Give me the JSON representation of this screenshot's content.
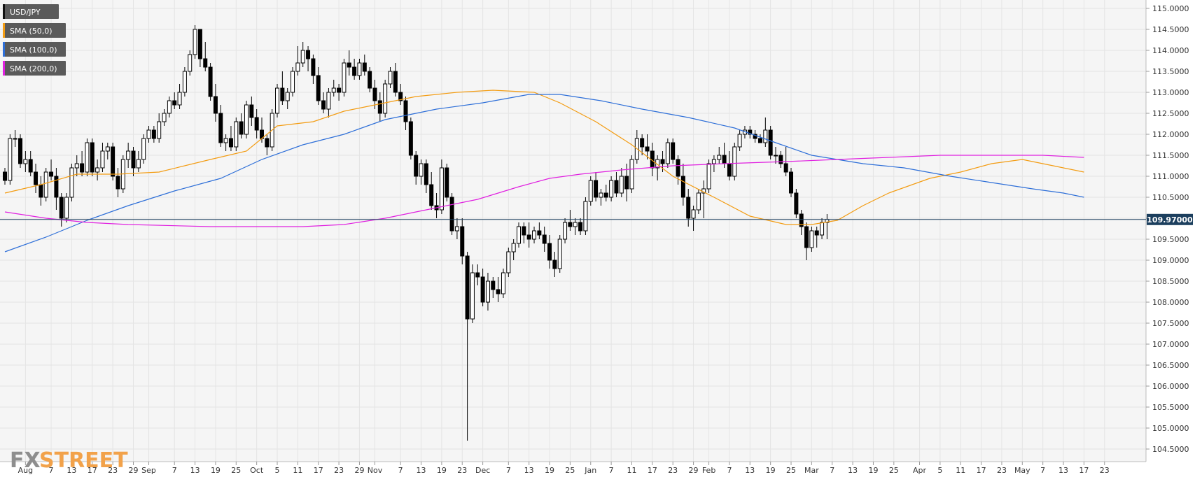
{
  "chart_data": {
    "type": "candlestick",
    "symbol": "USD/JPY",
    "indicators": [
      {
        "name": "SMA (50,0)",
        "color": "#f39c12"
      },
      {
        "name": "SMA (100,0)",
        "color": "#2e6fd8"
      },
      {
        "name": "SMA (200,0)",
        "color": "#e020e0"
      }
    ],
    "last_price_label": "109.97000",
    "last_price": 109.97,
    "ylim": [
      104.2,
      115.2
    ],
    "grid": true,
    "y_ticks": [
      "104.5000",
      "105.0000",
      "105.5000",
      "106.0000",
      "106.5000",
      "107.0000",
      "107.5000",
      "108.0000",
      "108.5000",
      "109.0000",
      "109.5000",
      "110.0000",
      "110.5000",
      "111.0000",
      "111.5000",
      "112.0000",
      "112.5000",
      "113.0000",
      "113.5000",
      "114.0000",
      "114.5000",
      "115.0000"
    ],
    "x_ticks": [
      {
        "label": "Aug",
        "i": 4
      },
      {
        "label": "7",
        "i": 9
      },
      {
        "label": "13",
        "i": 13
      },
      {
        "label": "17",
        "i": 17
      },
      {
        "label": "23",
        "i": 21
      },
      {
        "label": "29",
        "i": 25
      },
      {
        "label": "Sep",
        "i": 28
      },
      {
        "label": "7",
        "i": 33
      },
      {
        "label": "13",
        "i": 37
      },
      {
        "label": "19",
        "i": 41
      },
      {
        "label": "25",
        "i": 45
      },
      {
        "label": "Oct",
        "i": 49
      },
      {
        "label": "5",
        "i": 53
      },
      {
        "label": "11",
        "i": 57
      },
      {
        "label": "17",
        "i": 61
      },
      {
        "label": "23",
        "i": 65
      },
      {
        "label": "29",
        "i": 69
      },
      {
        "label": "Nov",
        "i": 72
      },
      {
        "label": "7",
        "i": 77
      },
      {
        "label": "13",
        "i": 81
      },
      {
        "label": "19",
        "i": 85
      },
      {
        "label": "23",
        "i": 89
      },
      {
        "label": "Dec",
        "i": 93
      },
      {
        "label": "7",
        "i": 98
      },
      {
        "label": "13",
        "i": 102
      },
      {
        "label": "19",
        "i": 106
      },
      {
        "label": "25",
        "i": 110
      },
      {
        "label": "Jan",
        "i": 114
      },
      {
        "label": "7",
        "i": 118
      },
      {
        "label": "11",
        "i": 122
      },
      {
        "label": "17",
        "i": 126
      },
      {
        "label": "23",
        "i": 130
      },
      {
        "label": "29",
        "i": 134
      },
      {
        "label": "Feb",
        "i": 137
      },
      {
        "label": "7",
        "i": 141
      },
      {
        "label": "13",
        "i": 145
      },
      {
        "label": "19",
        "i": 149
      },
      {
        "label": "25",
        "i": 153
      },
      {
        "label": "Mar",
        "i": 157
      },
      {
        "label": "7",
        "i": 161
      },
      {
        "label": "13",
        "i": 165
      },
      {
        "label": "19",
        "i": 169
      },
      {
        "label": "25",
        "i": 173
      },
      {
        "label": "Apr",
        "i": 178
      },
      {
        "label": "5",
        "i": 182
      },
      {
        "label": "11",
        "i": 186
      },
      {
        "label": "17",
        "i": 190
      },
      {
        "label": "23",
        "i": 194
      },
      {
        "label": "May",
        "i": 198
      },
      {
        "label": "7",
        "i": 202
      },
      {
        "label": "13",
        "i": 206
      },
      {
        "label": "17",
        "i": 210
      },
      {
        "label": "23",
        "i": 214
      }
    ],
    "sma50": [
      [
        0,
        110.6
      ],
      [
        7,
        110.8
      ],
      [
        14,
        111.05
      ],
      [
        22,
        111.05
      ],
      [
        30,
        111.1
      ],
      [
        40,
        111.4
      ],
      [
        47,
        111.6
      ],
      [
        53,
        112.2
      ],
      [
        60,
        112.3
      ],
      [
        66,
        112.55
      ],
      [
        72,
        112.7
      ],
      [
        80,
        112.9
      ],
      [
        88,
        113.0
      ],
      [
        95,
        113.05
      ],
      [
        103,
        113.0
      ],
      [
        108,
        112.75
      ],
      [
        115,
        112.3
      ],
      [
        122,
        111.75
      ],
      [
        130,
        111.0
      ],
      [
        138,
        110.5
      ],
      [
        145,
        110.05
      ],
      [
        152,
        109.85
      ],
      [
        157,
        109.85
      ],
      [
        162,
        109.95
      ],
      [
        167,
        110.3
      ],
      [
        172,
        110.6
      ],
      [
        180,
        110.95
      ],
      [
        186,
        111.1
      ],
      [
        192,
        111.3
      ],
      [
        198,
        111.4
      ],
      [
        204,
        111.25
      ],
      [
        210,
        111.1
      ]
    ],
    "sma100": [
      [
        0,
        109.2
      ],
      [
        8,
        109.55
      ],
      [
        16,
        109.95
      ],
      [
        24,
        110.3
      ],
      [
        33,
        110.65
      ],
      [
        42,
        110.95
      ],
      [
        50,
        111.4
      ],
      [
        58,
        111.75
      ],
      [
        66,
        112.0
      ],
      [
        74,
        112.35
      ],
      [
        84,
        112.6
      ],
      [
        93,
        112.75
      ],
      [
        102,
        112.95
      ],
      [
        108,
        112.95
      ],
      [
        116,
        112.8
      ],
      [
        124,
        112.6
      ],
      [
        133,
        112.4
      ],
      [
        142,
        112.15
      ],
      [
        150,
        111.8
      ],
      [
        157,
        111.5
      ],
      [
        167,
        111.3
      ],
      [
        175,
        111.2
      ],
      [
        184,
        111.0
      ],
      [
        192,
        110.85
      ],
      [
        200,
        110.7
      ],
      [
        206,
        110.6
      ],
      [
        210,
        110.5
      ]
    ],
    "sma200": [
      [
        0,
        110.15
      ],
      [
        8,
        110.0
      ],
      [
        16,
        109.9
      ],
      [
        24,
        109.85
      ],
      [
        40,
        109.8
      ],
      [
        58,
        109.8
      ],
      [
        66,
        109.85
      ],
      [
        74,
        110.0
      ],
      [
        82,
        110.2
      ],
      [
        92,
        110.45
      ],
      [
        100,
        110.75
      ],
      [
        106,
        110.95
      ],
      [
        112,
        111.05
      ],
      [
        120,
        111.15
      ],
      [
        130,
        111.25
      ],
      [
        140,
        111.3
      ],
      [
        152,
        111.35
      ],
      [
        162,
        111.4
      ],
      [
        172,
        111.45
      ],
      [
        182,
        111.5
      ],
      [
        192,
        111.5
      ],
      [
        202,
        111.5
      ],
      [
        210,
        111.45
      ]
    ],
    "candles": [
      [
        111.1,
        111.2,
        110.8,
        110.9
      ],
      [
        110.9,
        112.0,
        110.8,
        111.9
      ],
      [
        111.9,
        112.1,
        111.7,
        111.9
      ],
      [
        111.9,
        112.0,
        111.2,
        111.3
      ],
      [
        111.3,
        111.6,
        111.1,
        111.4
      ],
      [
        111.4,
        111.6,
        111.0,
        111.1
      ],
      [
        111.1,
        111.3,
        110.6,
        110.8
      ],
      [
        110.8,
        111.0,
        110.3,
        110.5
      ],
      [
        110.5,
        111.2,
        110.4,
        111.1
      ],
      [
        111.1,
        111.4,
        110.9,
        111.0
      ],
      [
        111.0,
        111.2,
        110.2,
        110.5
      ],
      [
        110.5,
        110.6,
        109.8,
        110.0
      ],
      [
        110.0,
        110.6,
        109.9,
        110.5
      ],
      [
        110.5,
        111.3,
        110.4,
        111.2
      ],
      [
        111.2,
        111.5,
        111.0,
        111.3
      ],
      [
        111.3,
        111.6,
        111.0,
        111.1
      ],
      [
        111.1,
        111.9,
        111.0,
        111.8
      ],
      [
        111.8,
        111.9,
        111.0,
        111.1
      ],
      [
        111.1,
        111.4,
        110.9,
        111.2
      ],
      [
        111.2,
        111.8,
        111.1,
        111.6
      ],
      [
        111.6,
        111.8,
        111.4,
        111.7
      ],
      [
        111.7,
        111.8,
        110.9,
        111.0
      ],
      [
        111.0,
        111.2,
        110.5,
        110.7
      ],
      [
        110.7,
        111.5,
        110.6,
        111.4
      ],
      [
        111.4,
        111.8,
        111.2,
        111.6
      ],
      [
        111.6,
        111.7,
        111.0,
        111.2
      ],
      [
        111.2,
        111.6,
        111.1,
        111.4
      ],
      [
        111.4,
        112.0,
        111.3,
        111.9
      ],
      [
        111.9,
        112.2,
        111.8,
        112.1
      ],
      [
        112.1,
        112.2,
        111.8,
        111.9
      ],
      [
        111.9,
        112.5,
        111.8,
        112.3
      ],
      [
        112.3,
        112.6,
        112.2,
        112.5
      ],
      [
        112.5,
        112.9,
        112.4,
        112.8
      ],
      [
        112.8,
        113.0,
        112.6,
        112.7
      ],
      [
        112.7,
        113.2,
        112.6,
        113.0
      ],
      [
        113.0,
        113.6,
        112.9,
        113.5
      ],
      [
        113.5,
        114.0,
        113.4,
        113.9
      ],
      [
        113.9,
        114.6,
        113.8,
        114.5
      ],
      [
        114.5,
        114.5,
        113.6,
        113.8
      ],
      [
        113.8,
        114.2,
        113.5,
        113.6
      ],
      [
        113.6,
        113.7,
        112.8,
        112.9
      ],
      [
        112.9,
        113.2,
        112.3,
        112.5
      ],
      [
        112.5,
        112.7,
        111.7,
        111.8
      ],
      [
        111.8,
        112.0,
        111.6,
        111.9
      ],
      [
        111.9,
        112.2,
        111.6,
        111.7
      ],
      [
        111.7,
        112.4,
        111.6,
        112.3
      ],
      [
        112.3,
        112.5,
        111.9,
        112.0
      ],
      [
        112.0,
        112.8,
        111.9,
        112.7
      ],
      [
        112.7,
        112.9,
        112.2,
        112.4
      ],
      [
        112.4,
        112.6,
        111.9,
        112.1
      ],
      [
        112.1,
        112.4,
        111.8,
        111.9
      ],
      [
        111.9,
        112.0,
        111.5,
        111.7
      ],
      [
        111.7,
        112.6,
        111.6,
        112.5
      ],
      [
        112.5,
        113.2,
        112.4,
        113.1
      ],
      [
        113.1,
        113.5,
        112.7,
        112.8
      ],
      [
        112.8,
        113.1,
        112.6,
        113.0
      ],
      [
        113.0,
        113.6,
        112.9,
        113.5
      ],
      [
        113.5,
        114.1,
        113.4,
        113.7
      ],
      [
        113.7,
        114.2,
        113.6,
        114.0
      ],
      [
        114.0,
        114.1,
        113.5,
        113.8
      ],
      [
        113.8,
        113.9,
        113.2,
        113.4
      ],
      [
        113.4,
        113.6,
        112.7,
        112.8
      ],
      [
        112.8,
        113.0,
        112.5,
        112.6
      ],
      [
        112.6,
        113.1,
        112.4,
        113.0
      ],
      [
        113.0,
        113.3,
        112.9,
        113.1
      ],
      [
        113.1,
        113.2,
        112.8,
        113.0
      ],
      [
        113.0,
        113.8,
        112.9,
        113.7
      ],
      [
        113.7,
        114.0,
        113.4,
        113.6
      ],
      [
        113.6,
        113.8,
        113.3,
        113.4
      ],
      [
        113.4,
        113.8,
        113.3,
        113.7
      ],
      [
        113.7,
        113.9,
        113.4,
        113.5
      ],
      [
        113.5,
        113.6,
        113.0,
        113.1
      ],
      [
        113.1,
        113.3,
        112.6,
        112.8
      ],
      [
        112.8,
        113.0,
        112.3,
        112.5
      ],
      [
        112.5,
        113.3,
        112.4,
        113.2
      ],
      [
        113.2,
        113.6,
        113.1,
        113.5
      ],
      [
        113.5,
        113.7,
        112.9,
        113.0
      ],
      [
        113.0,
        113.2,
        112.7,
        112.8
      ],
      [
        112.8,
        112.9,
        112.1,
        112.3
      ],
      [
        112.3,
        112.4,
        111.4,
        111.5
      ],
      [
        111.5,
        111.6,
        110.8,
        111.0
      ],
      [
        111.0,
        111.4,
        110.8,
        111.3
      ],
      [
        111.3,
        111.4,
        110.6,
        110.8
      ],
      [
        110.8,
        111.1,
        110.2,
        110.3
      ],
      [
        110.3,
        110.6,
        110.0,
        110.2
      ],
      [
        110.2,
        111.4,
        110.1,
        111.2
      ],
      [
        111.2,
        111.3,
        110.4,
        110.5
      ],
      [
        110.5,
        110.6,
        109.6,
        109.7
      ],
      [
        109.7,
        110.0,
        109.5,
        109.8
      ],
      [
        109.8,
        110.0,
        108.9,
        109.1
      ],
      [
        109.1,
        109.2,
        104.7,
        107.6
      ],
      [
        107.6,
        108.9,
        107.5,
        108.7
      ],
      [
        108.7,
        108.9,
        108.4,
        108.6
      ],
      [
        108.6,
        108.8,
        107.9,
        108.0
      ],
      [
        108.0,
        108.7,
        107.8,
        108.5
      ],
      [
        108.5,
        108.6,
        108.1,
        108.3
      ],
      [
        108.3,
        108.6,
        108.0,
        108.2
      ],
      [
        108.2,
        108.8,
        108.1,
        108.7
      ],
      [
        108.7,
        109.3,
        108.6,
        109.2
      ],
      [
        109.2,
        109.5,
        109.0,
        109.4
      ],
      [
        109.4,
        109.9,
        109.3,
        109.8
      ],
      [
        109.8,
        109.9,
        109.4,
        109.6
      ],
      [
        109.6,
        109.9,
        109.3,
        109.5
      ],
      [
        109.5,
        109.8,
        109.4,
        109.7
      ],
      [
        109.7,
        109.9,
        109.5,
        109.6
      ],
      [
        109.6,
        109.8,
        109.2,
        109.4
      ],
      [
        109.4,
        109.6,
        108.8,
        109.0
      ],
      [
        109.0,
        109.2,
        108.6,
        108.8
      ],
      [
        108.8,
        109.6,
        108.7,
        109.5
      ],
      [
        109.5,
        110.0,
        109.4,
        109.9
      ],
      [
        109.9,
        110.2,
        109.7,
        109.8
      ],
      [
        109.8,
        110.0,
        109.6,
        109.9
      ],
      [
        109.9,
        110.0,
        109.6,
        109.7
      ],
      [
        109.7,
        110.5,
        109.6,
        110.4
      ],
      [
        110.4,
        111.0,
        110.3,
        110.9
      ],
      [
        110.9,
        111.1,
        110.4,
        110.5
      ],
      [
        110.5,
        110.7,
        110.3,
        110.6
      ],
      [
        110.6,
        110.8,
        110.4,
        110.5
      ],
      [
        110.5,
        111.0,
        110.4,
        110.9
      ],
      [
        110.9,
        111.1,
        110.5,
        110.6
      ],
      [
        110.6,
        111.2,
        110.5,
        111.0
      ],
      [
        111.0,
        111.3,
        110.4,
        110.7
      ],
      [
        110.7,
        111.5,
        110.6,
        111.4
      ],
      [
        111.4,
        112.1,
        111.3,
        111.9
      ],
      [
        111.9,
        112.0,
        111.5,
        111.7
      ],
      [
        111.7,
        112.0,
        111.4,
        111.6
      ],
      [
        111.6,
        111.8,
        111.0,
        111.2
      ],
      [
        111.2,
        111.5,
        110.9,
        111.4
      ],
      [
        111.4,
        111.6,
        111.1,
        111.3
      ],
      [
        111.3,
        111.9,
        111.2,
        111.8
      ],
      [
        111.8,
        111.9,
        111.3,
        111.4
      ],
      [
        111.4,
        111.5,
        110.8,
        111.0
      ],
      [
        111.0,
        111.3,
        110.3,
        110.5
      ],
      [
        110.5,
        110.7,
        109.8,
        110.0
      ],
      [
        110.0,
        110.3,
        109.7,
        110.2
      ],
      [
        110.2,
        110.7,
        110.1,
        110.6
      ],
      [
        110.6,
        110.9,
        110.0,
        110.7
      ],
      [
        110.7,
        111.4,
        110.6,
        111.3
      ],
      [
        111.3,
        111.5,
        111.1,
        111.4
      ],
      [
        111.4,
        111.7,
        111.3,
        111.5
      ],
      [
        111.5,
        111.8,
        111.2,
        111.3
      ],
      [
        111.3,
        111.6,
        110.9,
        111.0
      ],
      [
        111.0,
        111.8,
        110.9,
        111.7
      ],
      [
        111.7,
        112.1,
        111.6,
        112.0
      ],
      [
        112.0,
        112.2,
        111.9,
        112.1
      ],
      [
        112.1,
        112.2,
        111.9,
        112.0
      ],
      [
        112.0,
        112.1,
        111.8,
        111.9
      ],
      [
        111.9,
        112.0,
        111.8,
        111.8
      ],
      [
        111.8,
        112.4,
        111.7,
        112.1
      ],
      [
        112.1,
        112.2,
        111.4,
        111.5
      ],
      [
        111.5,
        111.7,
        111.3,
        111.5
      ],
      [
        111.5,
        111.6,
        111.2,
        111.3
      ],
      [
        111.3,
        111.7,
        111.0,
        111.1
      ],
      [
        111.1,
        111.2,
        110.5,
        110.6
      ],
      [
        110.6,
        110.7,
        110.0,
        110.1
      ],
      [
        110.1,
        110.2,
        109.6,
        109.8
      ],
      [
        109.8,
        109.9,
        109.0,
        109.3
      ],
      [
        109.3,
        109.8,
        109.2,
        109.7
      ],
      [
        109.7,
        109.8,
        109.3,
        109.6
      ],
      [
        109.6,
        110.0,
        109.5,
        109.9
      ],
      [
        109.9,
        110.1,
        109.5,
        109.97
      ]
    ]
  }
}
